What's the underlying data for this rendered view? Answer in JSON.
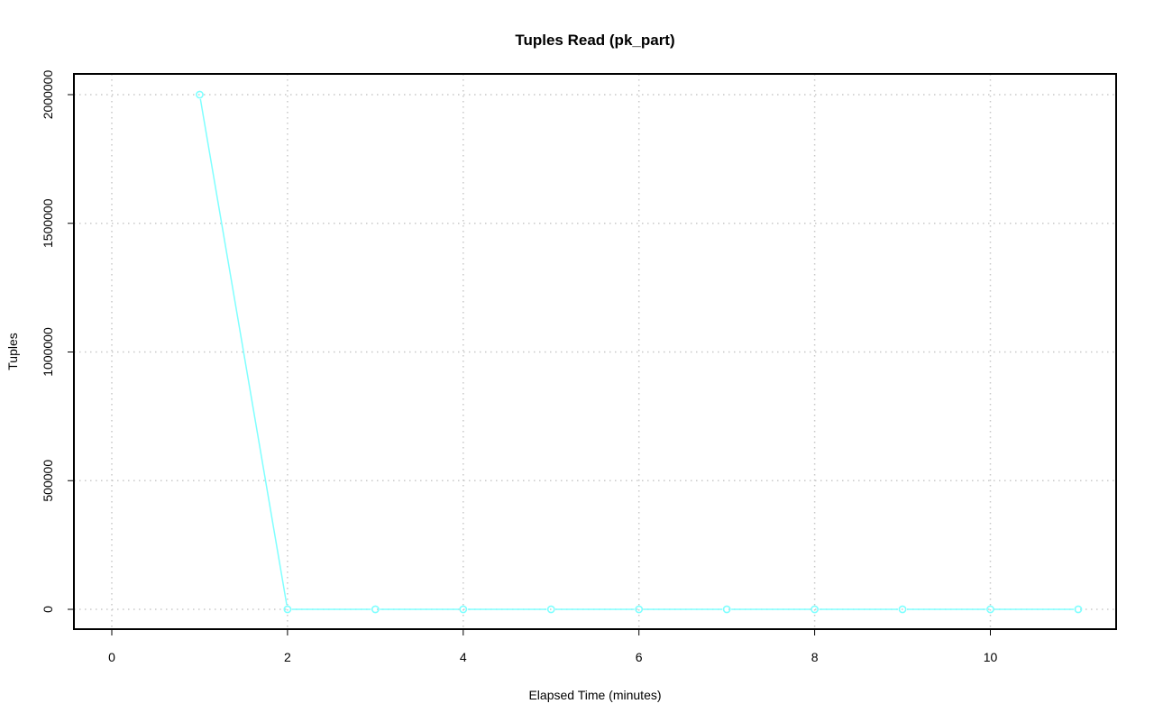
{
  "chart_data": {
    "type": "line",
    "title": "Tuples Read (pk_part)",
    "xlabel": "Elapsed Time (minutes)",
    "ylabel": "Tuples",
    "x": [
      1,
      2,
      3,
      4,
      5,
      6,
      7,
      8,
      9,
      10,
      11
    ],
    "series": [
      {
        "values": [
          2000000,
          0,
          0,
          0,
          0,
          0,
          0,
          0,
          0,
          0,
          0
        ],
        "color": "#7fffff"
      }
    ],
    "xticks": [
      0,
      2,
      4,
      6,
      8,
      10
    ],
    "yticks": [
      0,
      500000,
      1000000,
      1500000,
      2000000
    ],
    "xtick_labels": [
      "0",
      "2",
      "4",
      "6",
      "8",
      "10"
    ],
    "ytick_labels": [
      "0",
      "500000",
      "1000000",
      "1500000",
      "2000000"
    ],
    "grid": true,
    "markers": "open-circle"
  }
}
